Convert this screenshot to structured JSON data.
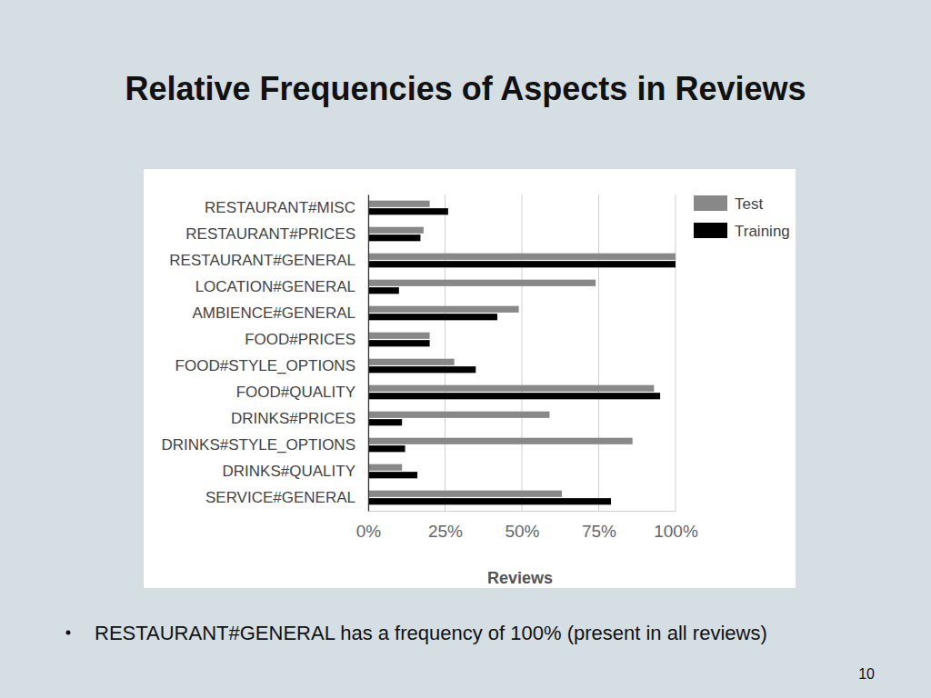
{
  "slide": {
    "title": "Relative Frequencies of Aspects in Reviews",
    "bullets": [
      "RESTAURANT#GENERAL has a frequency of 100% (present in all reviews)"
    ],
    "page_number": 10
  },
  "chart_data": {
    "type": "bar",
    "orientation": "horizontal",
    "categories": [
      "RESTAURANT#MISC",
      "RESTAURANT#PRICES",
      "RESTAURANT#GENERAL",
      "LOCATION#GENERAL",
      "AMBIENCE#GENERAL",
      "FOOD#PRICES",
      "FOOD#STYLE_OPTIONS",
      "FOOD#QUALITY",
      "DRINKS#PRICES",
      "DRINKS#STYLE_OPTIONS",
      "DRINKS#QUALITY",
      "SERVICE#GENERAL"
    ],
    "series": [
      {
        "name": "Test",
        "color": "#888888",
        "values": [
          20,
          18,
          100,
          74,
          49,
          20,
          28,
          93,
          59,
          86,
          11,
          63
        ]
      },
      {
        "name": "Training",
        "color": "#000000",
        "values": [
          26,
          17,
          100,
          10,
          42,
          20,
          35,
          95,
          11,
          12,
          16,
          79
        ]
      }
    ],
    "x_label": "Reviews",
    "xlim": [
      0,
      100
    ],
    "xticks": [
      {
        "value": 0,
        "label": "0%"
      },
      {
        "value": 25,
        "label": "25%"
      },
      {
        "value": 50,
        "label": "50%"
      },
      {
        "value": 75,
        "label": "75%"
      },
      {
        "value": 100,
        "label": "100%"
      }
    ],
    "grid": true,
    "legend": "top-right"
  }
}
